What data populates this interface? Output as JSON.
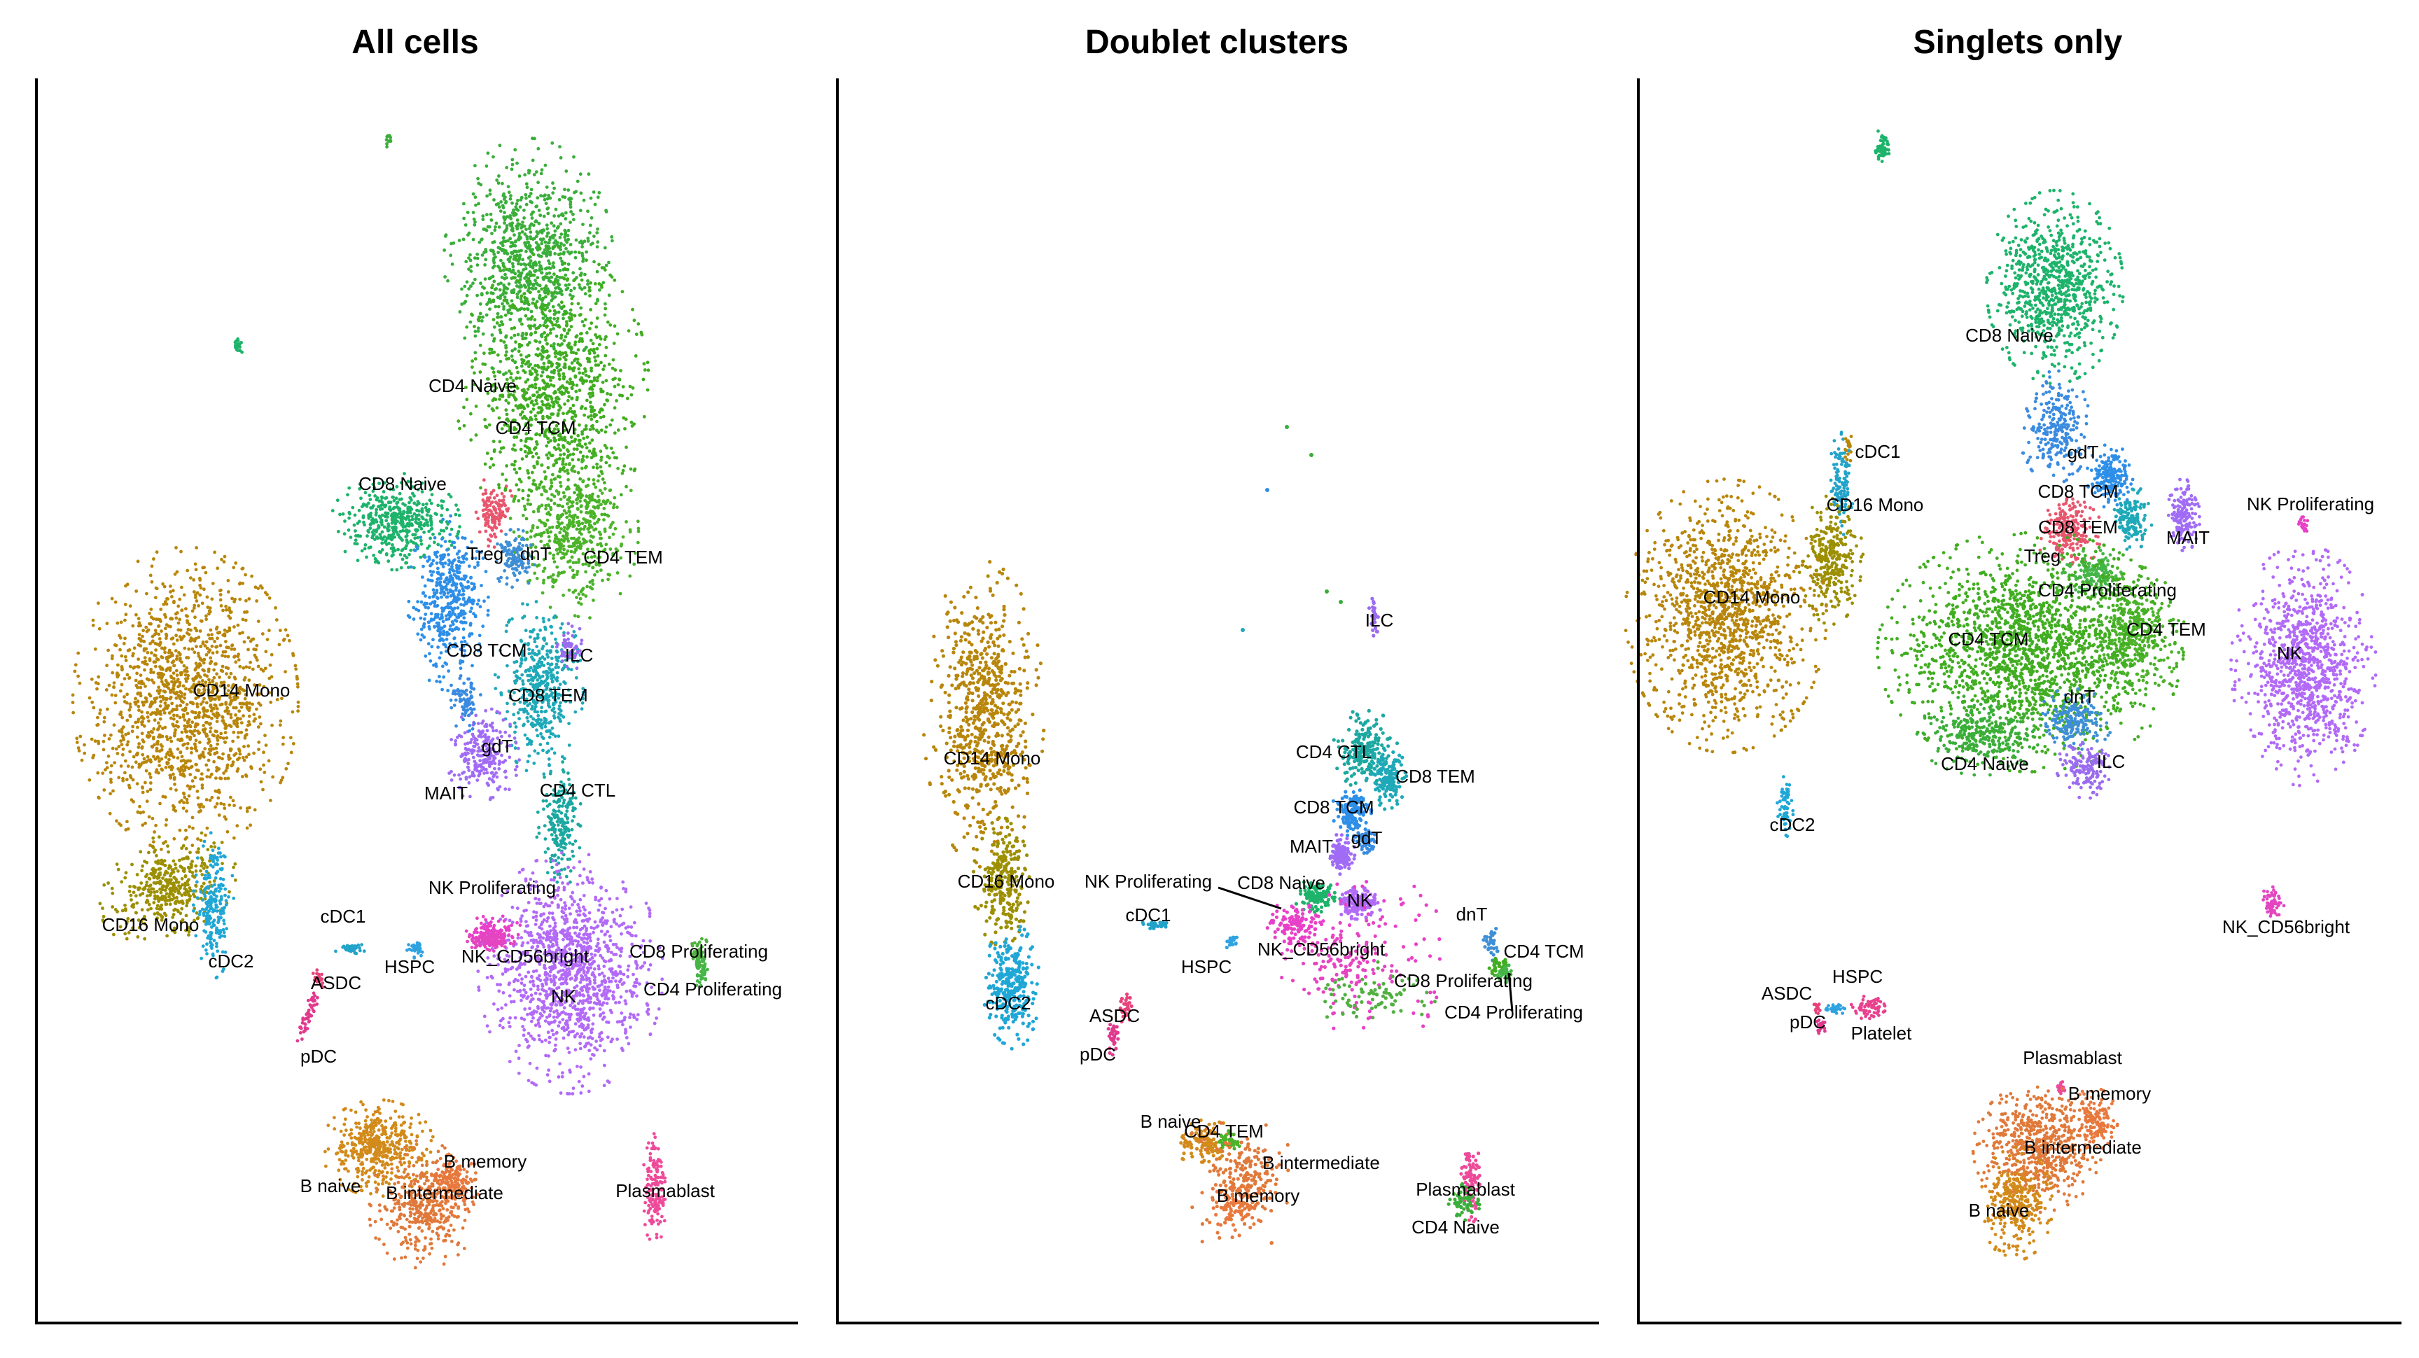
{
  "figure": {
    "panels": [
      "All cells",
      "Doublet clusters",
      "Singlets only"
    ]
  },
  "colors": {
    "CD14 Mono": "#B8860B",
    "CD16 Mono": "#9C8F00",
    "cDC2": "#1FA7D6",
    "cDC1": "#22A3C9",
    "ASDC": "#E8427B",
    "pDC": "#E03A8E",
    "HSPC": "#2FA3E0",
    "Platelet": "#E8428E",
    "CD4 Naive": "#3AAE3A",
    "CD4 TCM": "#41AD21",
    "CD4 TEM": "#4CB32A",
    "CD4 CTL": "#1BA8A0",
    "CD4 Proliferating": "#45B548",
    "CD8 Naive": "#1DB36B",
    "CD8 TCM": "#2E8FE8",
    "CD8 TEM": "#1FA9B8",
    "CD8 Proliferating": "#50B040",
    "Treg": "#E8566E",
    "dnT": "#3F8FD6",
    "gdT": "#3A8BE0",
    "MAIT": "#A16CF5",
    "ILC": "#9B6CF0",
    "NK": "#B26AF7",
    "NK Proliferating": "#E840C8",
    "NK_CD56bright": "#E445C0",
    "B naive": "#D28A1A",
    "B intermediate": "#E0793A",
    "B memory": "#E8793E",
    "Plasmablast": "#EE4A9A"
  },
  "chart_data": [
    {
      "type": "scatter",
      "title": "All cells",
      "xlabel": "",
      "ylabel": "",
      "grid": false,
      "legend": "none",
      "cluster_labels": [
        "CD4 Naive",
        "CD4 TCM",
        "CD8 Naive",
        "Treg",
        "CD4 TEM",
        "dnT",
        "CD8 TCM",
        "ILC",
        "CD14 Mono",
        "CD8 TEM",
        "gdT",
        "MAIT",
        "CD4 CTL",
        "NK Proliferating",
        "CD16 Mono",
        "cDC1",
        "HSPC",
        "NK_CD56bright",
        "CD8 Proliferating",
        "cDC2",
        "ASDC",
        "CD4 Proliferating",
        "NK",
        "pDC",
        "B memory",
        "B naive",
        "B intermediate",
        "Plasmablast"
      ]
    },
    {
      "type": "scatter",
      "title": "Doublet clusters",
      "xlabel": "",
      "ylabel": "",
      "grid": false,
      "legend": "none",
      "cluster_labels": [
        "ILC",
        "CD14 Mono",
        "CD4 CTL",
        "CD8 TEM",
        "CD8 TCM",
        "MAIT",
        "gdT",
        "NK Proliferating",
        "CD8 Naive",
        "CD16 Mono",
        "NK",
        "cDC1",
        "dnT",
        "HSPC",
        "NK_CD56bright",
        "CD4 TCM",
        "CD8 Proliferating",
        "cDC2",
        "CD4 Proliferating",
        "ASDC",
        "pDC",
        "B naive",
        "CD4 TEM",
        "B intermediate",
        "Plasmablast",
        "B memory",
        "CD4 Naive"
      ]
    },
    {
      "type": "scatter",
      "title": "Singlets only",
      "xlabel": "",
      "ylabel": "",
      "grid": false,
      "legend": "none",
      "cluster_labels": [
        "CD8 Naive",
        "cDC1",
        "gdT",
        "CD16 Mono",
        "CD8 TCM",
        "NK Proliferating",
        "CD8 TEM",
        "MAIT",
        "Treg",
        "CD14 Mono",
        "CD4 Proliferating",
        "CD4 TEM",
        "CD4 TCM",
        "NK",
        "dnT",
        "CD4 Naive",
        "ILC",
        "cDC2",
        "NK_CD56bright",
        "HSPC",
        "ASDC",
        "pDC",
        "Platelet",
        "Plasmablast",
        "B memory",
        "B intermediate",
        "B naive"
      ]
    }
  ]
}
